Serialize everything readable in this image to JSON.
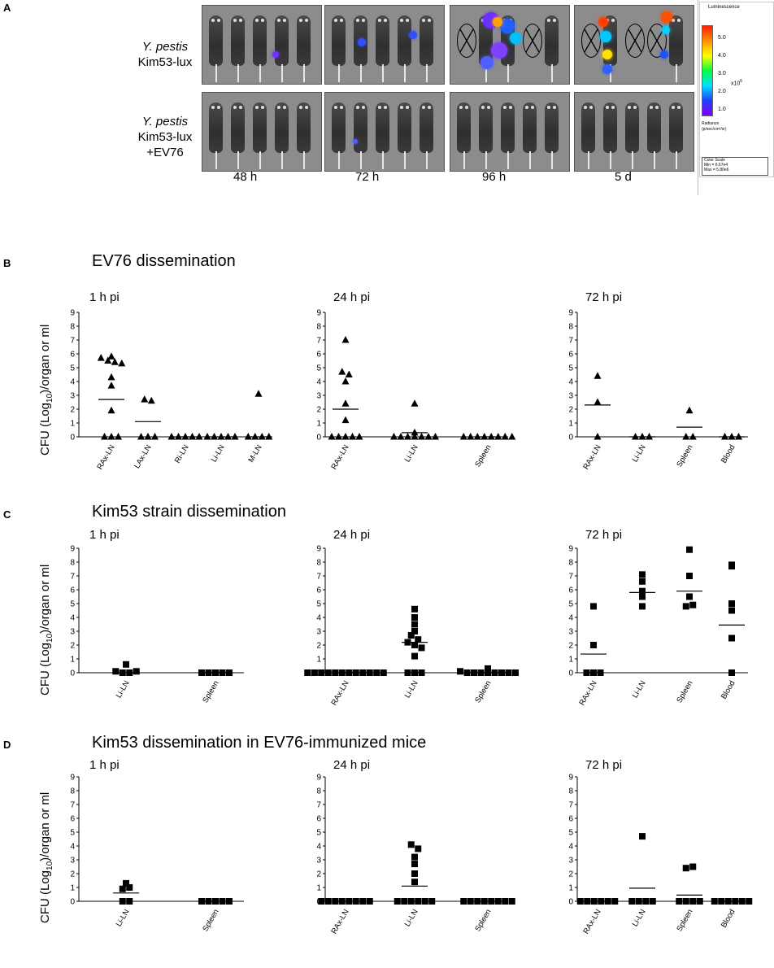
{
  "panel_a": {
    "letter": "A",
    "row1_label_italic": "Y. pestis",
    "row1_label_rest": " Kim53-lux",
    "row2_label_italic": "Y. pestis",
    "row2_label_rest": " Kim53-lux",
    "row2_label_line2": "+EV76",
    "timepoints": [
      "48 h",
      "72 h",
      "96 h",
      "5 d"
    ],
    "scale": {
      "title": "Luminescence",
      "ticks": [
        "5.0",
        "4.0",
        "3.0",
        "2.0",
        "1.0"
      ],
      "exponent": "x10",
      "exponent_sup": "6",
      "unit_line1": "Radiance",
      "unit_line2": "(p/sec/cm²/sr)",
      "box_line1": "Color Scale",
      "box_line2": "Min = 6.67e4",
      "box_line3": "Max = 5.80e6",
      "colors": [
        "#ff2000",
        "#ff9000",
        "#ffff00",
        "#00ff40",
        "#00e0ff",
        "#2040ff",
        "#8000ff"
      ]
    }
  },
  "ylabel": {
    "prefix": "CFU (Log",
    "sub": "10",
    "suffix": ")/organ or ml"
  },
  "sections": [
    {
      "letter": "B",
      "title": "EV76 dissemination",
      "y_label_drawn": true,
      "charts": [
        {
          "subtitle": "1 h pi",
          "marker": "triangle",
          "ymax": 9,
          "categories": [
            "RAx-LN",
            "LAx-LN",
            "Ri-LN",
            "Li-LN",
            "M-LN"
          ],
          "points": [
            [
              5.7,
              5.5,
              5.8,
              5.4,
              5.3,
              4.3,
              3.7,
              1.9,
              0,
              0,
              0
            ],
            [
              2.7,
              2.6,
              0,
              0,
              0
            ],
            [
              0,
              0,
              0,
              0,
              0
            ],
            [
              0,
              0,
              0,
              0,
              0
            ],
            [
              3.1,
              0,
              0,
              0,
              0
            ]
          ],
          "means": [
            2.7,
            1.1,
            0,
            0,
            0
          ]
        },
        {
          "subtitle": "24 h pi",
          "marker": "triangle",
          "ymax": 9,
          "categories": [
            "RAx-LN",
            "Li-LN",
            "Spleen"
          ],
          "points": [
            [
              7.0,
              4.7,
              4.5,
              4.0,
              2.4,
              1.2,
              0,
              0,
              0,
              0,
              0
            ],
            [
              2.4,
              0.3,
              0,
              0,
              0,
              0,
              0,
              0,
              0
            ],
            [
              0,
              0,
              0,
              0,
              0,
              0,
              0,
              0
            ]
          ],
          "means": [
            2.0,
            0.3,
            0
          ]
        },
        {
          "subtitle": "72 h pi",
          "marker": "triangle",
          "ymax": 9,
          "categories": [
            "RAx-LN",
            "Li-LN",
            "Spleen",
            "Blood"
          ],
          "points": [
            [
              4.4,
              2.5,
              0
            ],
            [
              0,
              0,
              0
            ],
            [
              1.9,
              0,
              0
            ],
            [
              0,
              0,
              0
            ]
          ],
          "means": [
            2.3,
            0,
            0.7,
            0
          ]
        }
      ]
    },
    {
      "letter": "C",
      "title": "Kim53 strain dissemination",
      "y_label_drawn": true,
      "charts": [
        {
          "subtitle": "1 h pi",
          "marker": "square",
          "ymax": 9,
          "categories": [
            "Li-LN",
            "Spleen"
          ],
          "points": [
            [
              0.6,
              0.1,
              0,
              0,
              0.1
            ],
            [
              0,
              0,
              0,
              0,
              0
            ]
          ],
          "means": [
            0,
            0
          ]
        },
        {
          "subtitle": "24 h pi",
          "marker": "square",
          "ymax": 9,
          "categories": [
            "RAx-LN",
            "Li-LN",
            "Spleen"
          ],
          "points": [
            [
              0,
              0,
              0,
              0,
              0,
              0,
              0,
              0,
              0,
              0,
              0,
              0
            ],
            [
              4.6,
              4.0,
              3.5,
              3.0,
              2.7,
              2.4,
              2.2,
              2.0,
              1.8,
              1.2,
              0,
              0,
              0
            ],
            [
              0.3,
              0.1,
              0,
              0,
              0,
              0,
              0,
              0,
              0,
              0
            ]
          ],
          "means": [
            0,
            2.2,
            0
          ]
        },
        {
          "subtitle": "72 h pi",
          "marker": "square",
          "ymax": 9,
          "categories": [
            "RAx-LN",
            "Li-LN",
            "Spleen",
            "Blood"
          ],
          "points": [
            [
              4.8,
              2.0,
              0,
              0,
              0
            ],
            [
              7.1,
              6.6,
              5.9,
              5.5,
              4.8
            ],
            [
              8.9,
              7.0,
              5.5,
              4.8,
              4.9
            ],
            [
              7.8,
              7.7,
              5.0,
              4.5,
              2.5,
              0
            ]
          ],
          "means": [
            1.35,
            5.8,
            5.9,
            3.45
          ]
        }
      ]
    },
    {
      "letter": "D",
      "title": "Kim53 dissemination in EV76-immunized mice",
      "y_label_drawn": true,
      "charts": [
        {
          "subtitle": "1 h pi",
          "marker": "square",
          "ymax": 9,
          "categories": [
            "Li-LN",
            "Spleen"
          ],
          "points": [
            [
              1.3,
              0.9,
              1.0,
              0,
              0
            ],
            [
              0,
              0,
              0,
              0,
              0
            ]
          ],
          "means": [
            0.6,
            0
          ]
        },
        {
          "subtitle": "24 h pi",
          "marker": "square",
          "ymax": 9,
          "categories": [
            "RAx-LN",
            "Li-LN",
            "Spleen"
          ],
          "points": [
            [
              0,
              0,
              0,
              0,
              0,
              0,
              0,
              0
            ],
            [
              4.1,
              3.8,
              3.2,
              2.7,
              2.0,
              1.4,
              0,
              0,
              0,
              0,
              0,
              0
            ],
            [
              0,
              0,
              0,
              0,
              0,
              0,
              0,
              0
            ]
          ],
          "means": [
            0,
            1.1,
            0
          ]
        },
        {
          "subtitle": "72 h pi",
          "marker": "square",
          "ymax": 9,
          "categories": [
            "RAx-LN",
            "Li-LN",
            "Spleen",
            "Blood"
          ],
          "points": [
            [
              0,
              0,
              0,
              0,
              0,
              0
            ],
            [
              4.7,
              0,
              0,
              0,
              0
            ],
            [
              2.4,
              2.5,
              0,
              0,
              0,
              0
            ],
            [
              0,
              0,
              0,
              0,
              0,
              0
            ]
          ],
          "means": [
            0,
            0.95,
            0.45,
            0
          ]
        }
      ]
    }
  ],
  "chart_data": [
    {
      "type": "scatter",
      "panel": "B",
      "title": "1 h pi",
      "ylabel": "CFU (Log10)/organ or ml",
      "ylim": [
        0,
        9
      ],
      "categories": [
        "RAx-LN",
        "LAx-LN",
        "Ri-LN",
        "Li-LN",
        "M-LN"
      ],
      "values": [
        [
          5.7,
          5.5,
          5.8,
          5.4,
          5.3,
          4.3,
          3.7,
          1.9,
          0,
          0,
          0
        ],
        [
          2.7,
          2.6,
          0,
          0,
          0
        ],
        [
          0,
          0,
          0,
          0,
          0
        ],
        [
          0,
          0,
          0,
          0,
          0
        ],
        [
          3.1,
          0,
          0,
          0,
          0
        ]
      ],
      "means": [
        2.7,
        1.1,
        0,
        0,
        0
      ]
    },
    {
      "type": "scatter",
      "panel": "B",
      "title": "24 h pi",
      "ylim": [
        0,
        9
      ],
      "categories": [
        "RAx-LN",
        "Li-LN",
        "Spleen"
      ],
      "values": [
        [
          7.0,
          4.7,
          4.5,
          4.0,
          2.4,
          1.2,
          0,
          0,
          0,
          0,
          0
        ],
        [
          2.4,
          0.3,
          0,
          0,
          0,
          0,
          0,
          0,
          0
        ],
        [
          0,
          0,
          0,
          0,
          0,
          0,
          0,
          0
        ]
      ],
      "means": [
        2.0,
        0.3,
        0
      ]
    },
    {
      "type": "scatter",
      "panel": "B",
      "title": "72 h pi",
      "ylim": [
        0,
        9
      ],
      "categories": [
        "RAx-LN",
        "Li-LN",
        "Spleen",
        "Blood"
      ],
      "values": [
        [
          4.4,
          2.5,
          0
        ],
        [
          0,
          0,
          0
        ],
        [
          1.9,
          0,
          0
        ],
        [
          0,
          0,
          0
        ]
      ],
      "means": [
        2.3,
        0,
        0.7,
        0
      ]
    },
    {
      "type": "scatter",
      "panel": "C",
      "title": "1 h pi",
      "ylim": [
        0,
        9
      ],
      "categories": [
        "Li-LN",
        "Spleen"
      ],
      "values": [
        [
          0.6,
          0.1,
          0,
          0,
          0.1
        ],
        [
          0,
          0,
          0,
          0,
          0
        ]
      ],
      "means": [
        0,
        0
      ]
    },
    {
      "type": "scatter",
      "panel": "C",
      "title": "24 h pi",
      "ylim": [
        0,
        9
      ],
      "categories": [
        "RAx-LN",
        "Li-LN",
        "Spleen"
      ],
      "values": [
        [
          0,
          0,
          0,
          0,
          0,
          0,
          0,
          0,
          0,
          0,
          0,
          0
        ],
        [
          4.6,
          4.0,
          3.5,
          3.0,
          2.7,
          2.4,
          2.2,
          2.0,
          1.8,
          1.2,
          0,
          0,
          0
        ],
        [
          0.3,
          0.1,
          0,
          0,
          0,
          0,
          0,
          0,
          0,
          0
        ]
      ],
      "means": [
        0,
        2.2,
        0
      ]
    },
    {
      "type": "scatter",
      "panel": "C",
      "title": "72 h pi",
      "ylim": [
        0,
        9
      ],
      "categories": [
        "RAx-LN",
        "Li-LN",
        "Spleen",
        "Blood"
      ],
      "values": [
        [
          4.8,
          2.0,
          0,
          0,
          0
        ],
        [
          7.1,
          6.6,
          5.9,
          5.5,
          4.8
        ],
        [
          8.9,
          7.0,
          5.5,
          4.8,
          4.9
        ],
        [
          7.8,
          7.7,
          5.0,
          4.5,
          2.5,
          0
        ]
      ],
      "means": [
        1.35,
        5.8,
        5.9,
        3.45
      ]
    },
    {
      "type": "scatter",
      "panel": "D",
      "title": "1 h pi",
      "ylim": [
        0,
        9
      ],
      "categories": [
        "Li-LN",
        "Spleen"
      ],
      "values": [
        [
          1.3,
          0.9,
          1.0,
          0,
          0
        ],
        [
          0,
          0,
          0,
          0,
          0
        ]
      ],
      "means": [
        0.6,
        0
      ]
    },
    {
      "type": "scatter",
      "panel": "D",
      "title": "24 h pi",
      "ylim": [
        0,
        9
      ],
      "categories": [
        "RAx-LN",
        "Li-LN",
        "Spleen"
      ],
      "values": [
        [
          0,
          0,
          0,
          0,
          0,
          0,
          0,
          0
        ],
        [
          4.1,
          3.8,
          3.2,
          2.7,
          2.0,
          1.4,
          0,
          0,
          0,
          0,
          0,
          0
        ],
        [
          0,
          0,
          0,
          0,
          0,
          0,
          0,
          0
        ]
      ],
      "means": [
        0,
        1.1,
        0
      ]
    },
    {
      "type": "scatter",
      "panel": "D",
      "title": "72 h pi",
      "ylim": [
        0,
        9
      ],
      "categories": [
        "RAx-LN",
        "Li-LN",
        "Spleen",
        "Blood"
      ],
      "values": [
        [
          0,
          0,
          0,
          0,
          0,
          0
        ],
        [
          4.7,
          0,
          0,
          0,
          0
        ],
        [
          2.4,
          2.5,
          0,
          0,
          0,
          0
        ],
        [
          0,
          0,
          0,
          0,
          0,
          0
        ]
      ],
      "means": [
        0,
        0.95,
        0.45,
        0
      ]
    }
  ]
}
